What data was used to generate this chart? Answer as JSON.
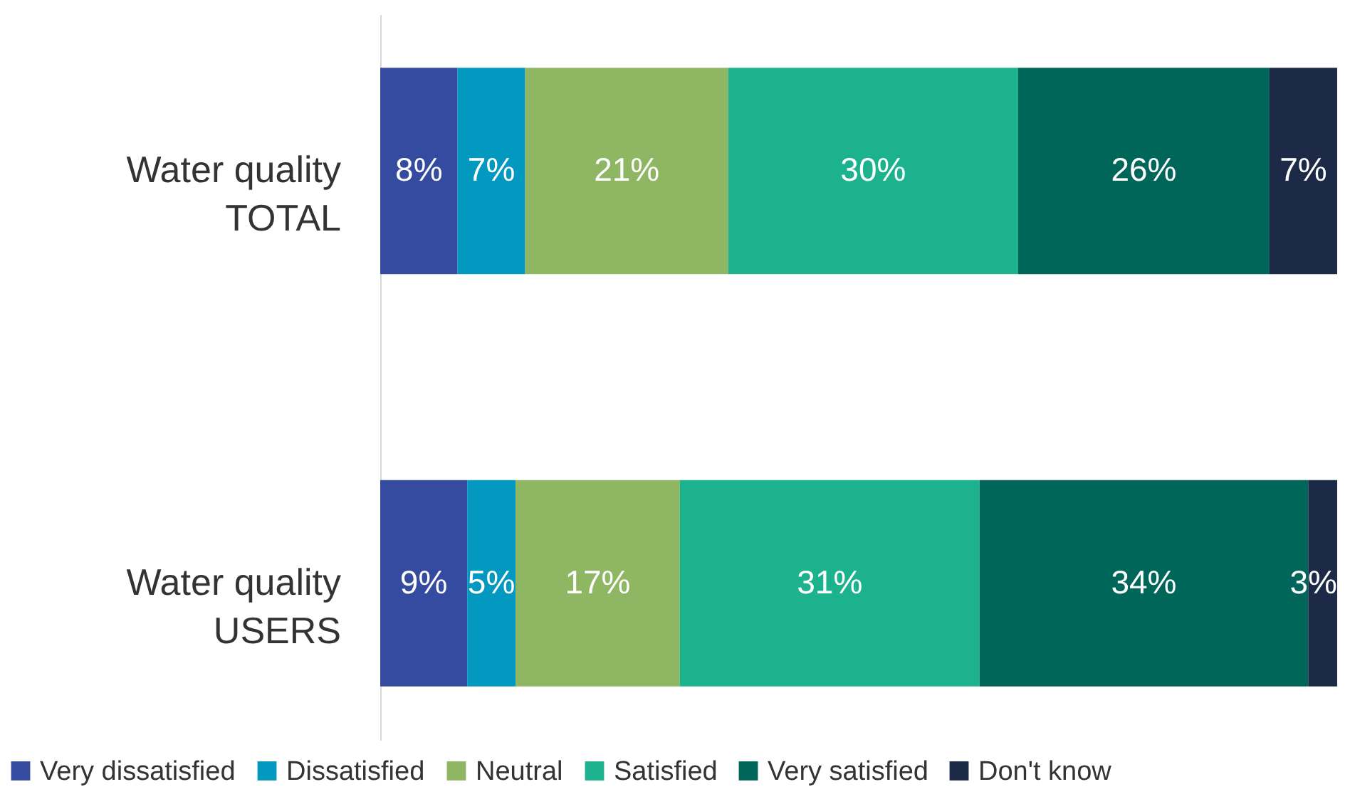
{
  "chart_data": {
    "type": "bar",
    "orientation": "horizontal",
    "stacked": true,
    "legend": "bottom",
    "grid": false,
    "categories": [
      "Water quality\nTOTAL",
      "Water quality\nUSERS"
    ],
    "series": [
      {
        "name": "Very dissatisfied",
        "color": "#354ba0",
        "values": [
          8,
          9
        ],
        "value_labels": [
          "8%",
          "9%"
        ]
      },
      {
        "name": "Dissatisfied",
        "color": "#0298bf",
        "values": [
          7,
          5
        ],
        "value_labels": [
          "7%",
          "5%"
        ]
      },
      {
        "name": "Neutral",
        "color": "#8fb662",
        "values": [
          21,
          17
        ],
        "value_labels": [
          "21%",
          "17%"
        ]
      },
      {
        "name": "Satisfied",
        "color": "#1db28e",
        "values": [
          30,
          31
        ],
        "value_labels": [
          "30%",
          "31%"
        ]
      },
      {
        "name": "Very satisfied",
        "color": "#01665a",
        "values": [
          26,
          34
        ],
        "value_labels": [
          "26%",
          "34%"
        ]
      },
      {
        "name": "Don't know",
        "color": "#1c2a48",
        "values": [
          7,
          3
        ],
        "value_labels": [
          "7%",
          "3%"
        ]
      }
    ]
  }
}
